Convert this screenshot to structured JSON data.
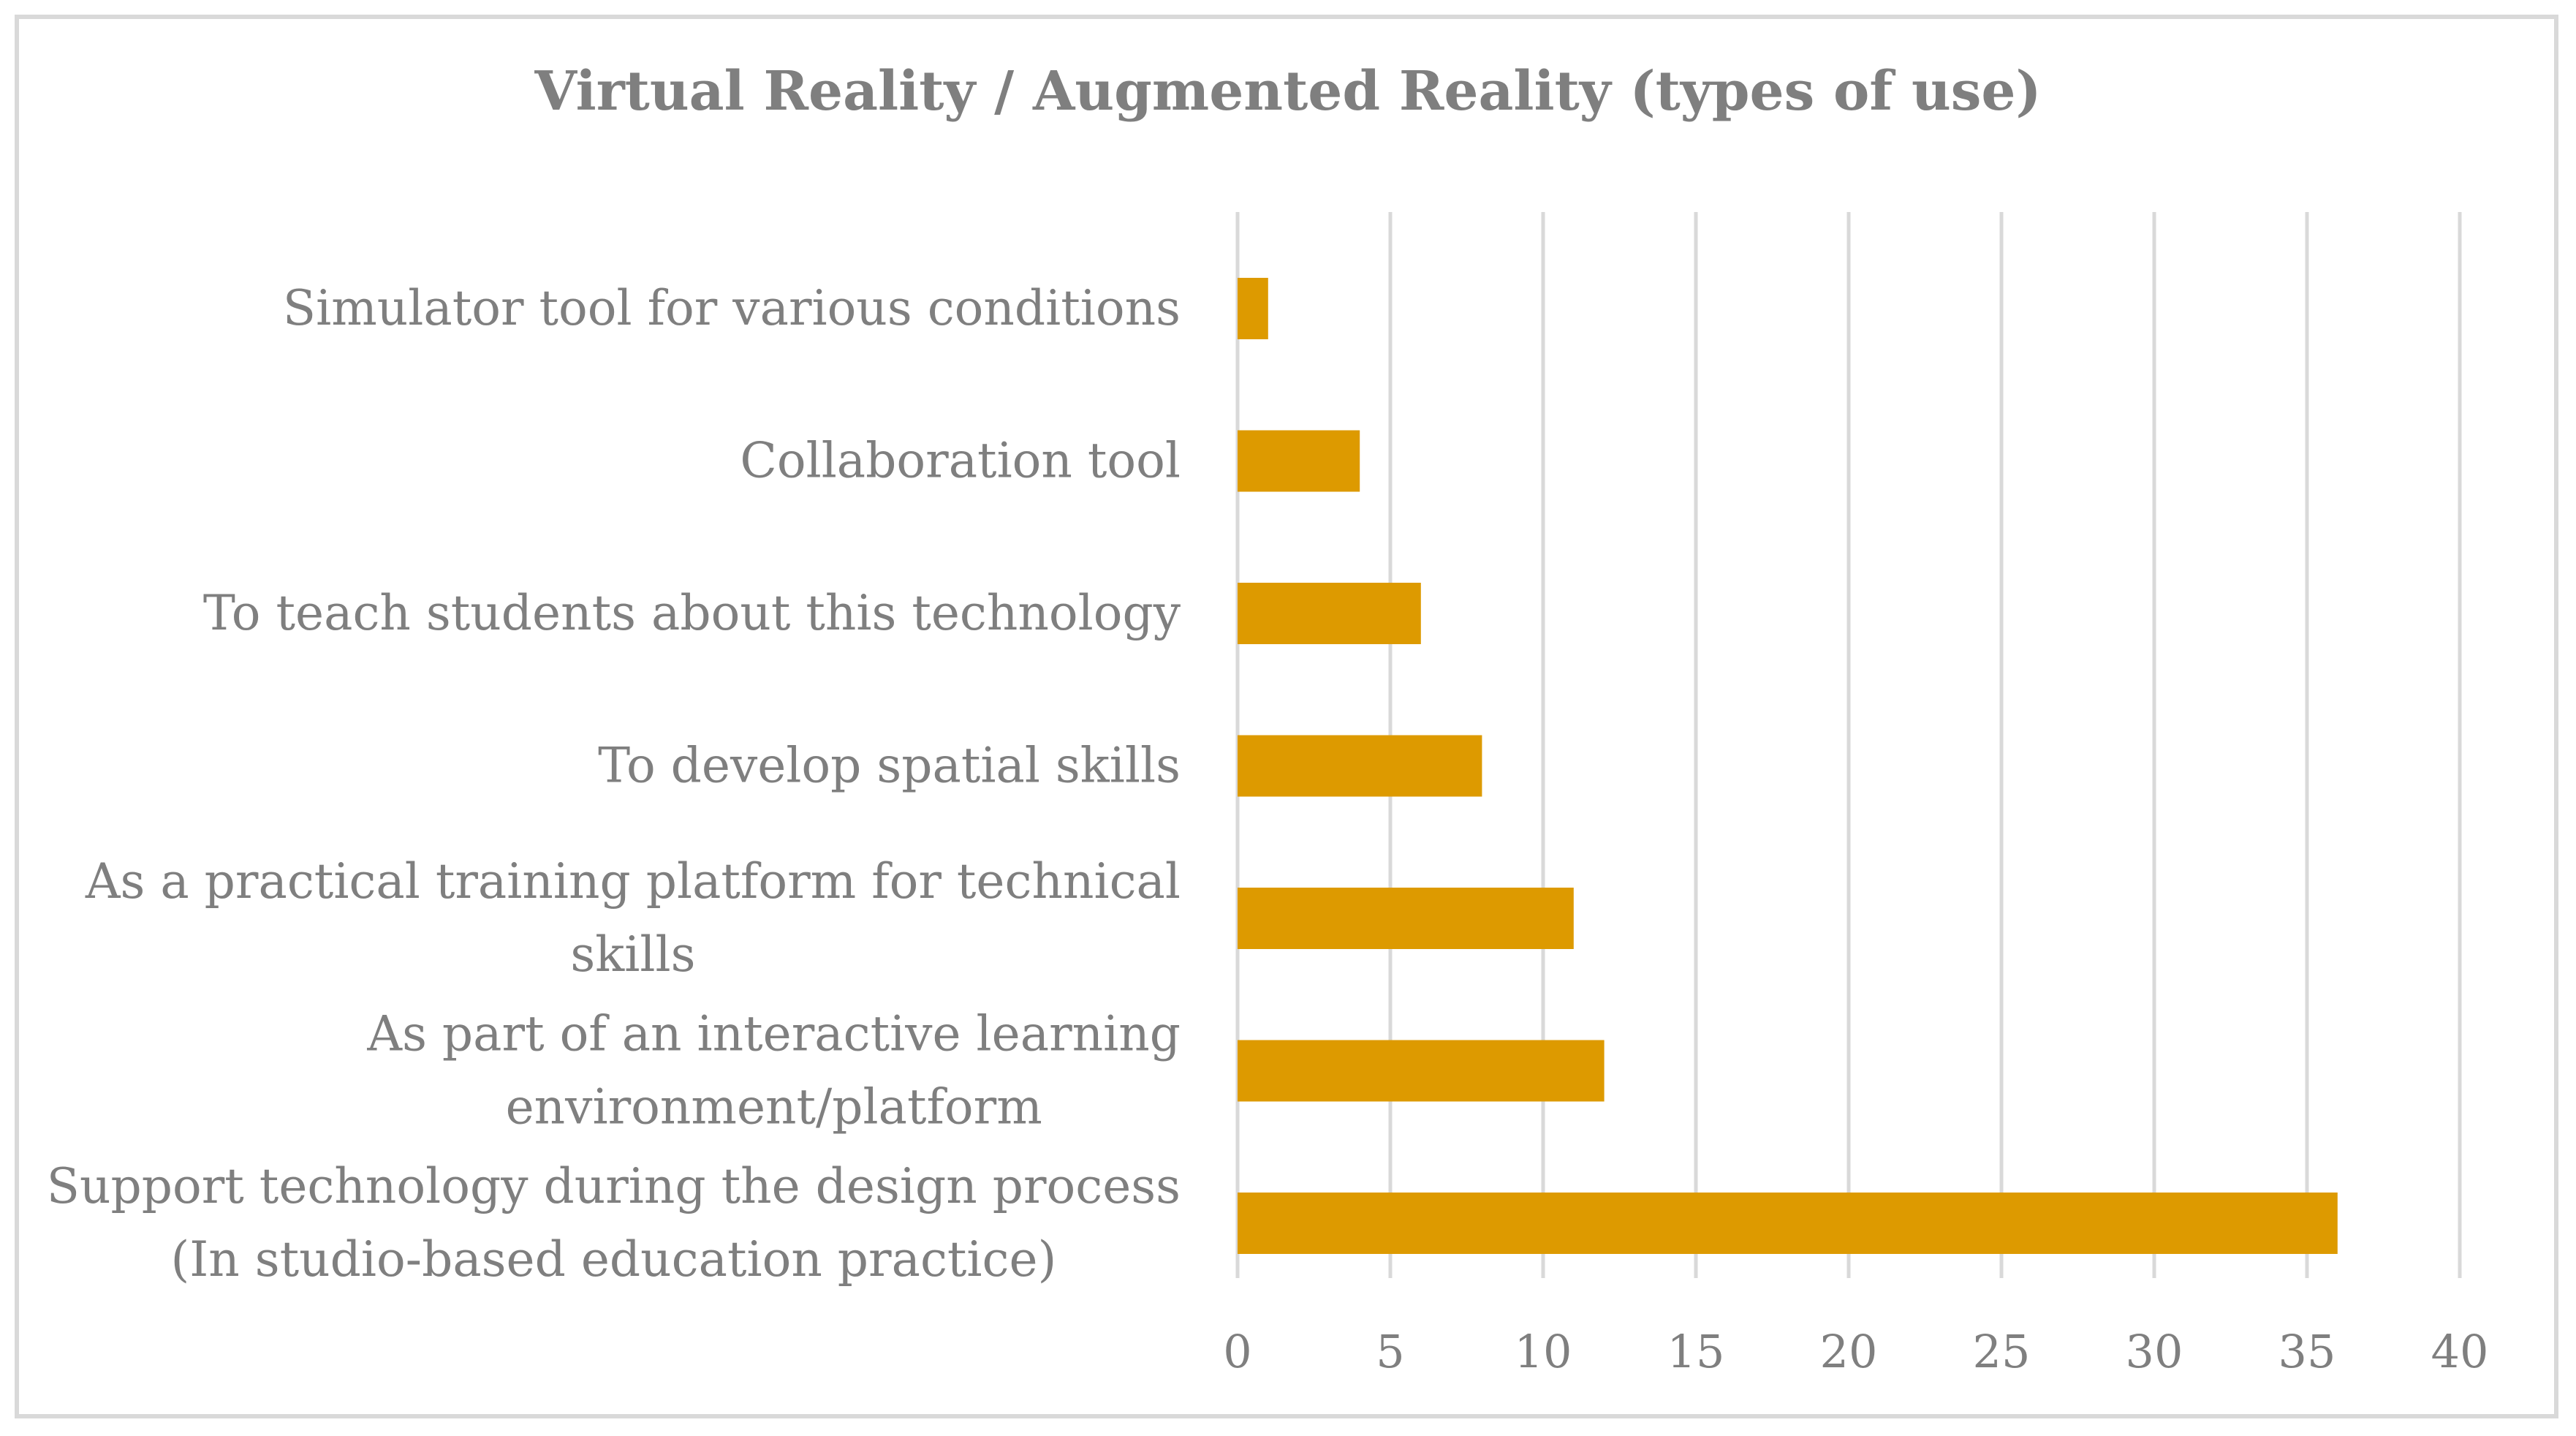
{
  "chart_data": {
    "type": "bar",
    "orientation": "horizontal",
    "title": "Virtual Reality / Augmented Reality (types of use)",
    "xlabel": "",
    "ylabel": "",
    "categories": [
      [
        "Support technology during the design process",
        "(In studio-based education practice)"
      ],
      [
        "As part of an interactive learning",
        "environment/platform"
      ],
      [
        "As a practical training platform for technical",
        "skills"
      ],
      [
        "To develop spatial skills"
      ],
      [
        "To teach students about this technology"
      ],
      [
        "Collaboration tool"
      ],
      [
        "Simulator tool for various conditions"
      ]
    ],
    "values": [
      36,
      12,
      11,
      8,
      6,
      4,
      1
    ],
    "xlim": [
      0,
      40
    ],
    "ticks": [
      0,
      5,
      10,
      15,
      20,
      25,
      30,
      35,
      40
    ],
    "tick_labels": [
      "0",
      "5",
      "10",
      "15",
      "20",
      "25",
      "30",
      "35",
      "40"
    ],
    "grid": true,
    "legend": "none",
    "colors": {
      "bar": "#dd9a00",
      "text": "#7f7f7f",
      "grid": "#d9d9d9",
      "border": "#d9d9d9"
    }
  }
}
